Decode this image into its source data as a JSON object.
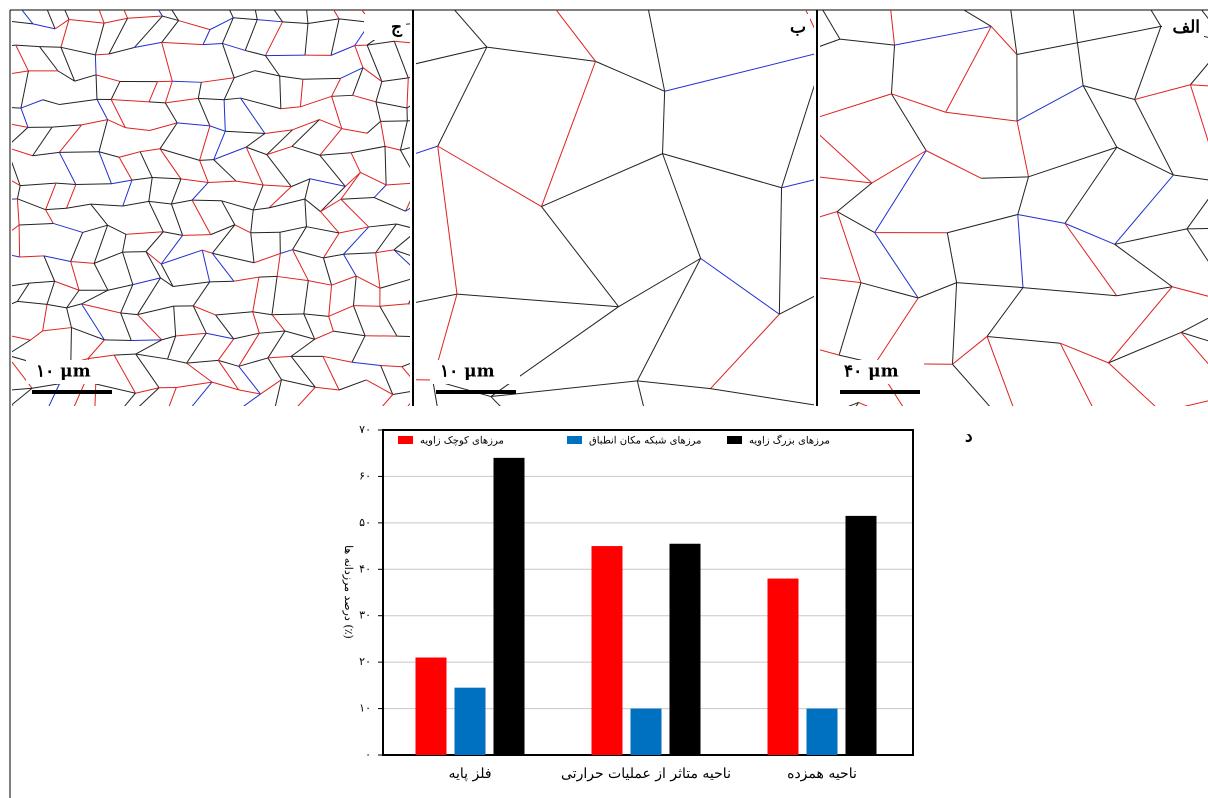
{
  "panels": [
    {
      "label": "ج",
      "scale": "۱۰ μm"
    },
    {
      "label": "ب",
      "scale": "۱۰ μm"
    },
    {
      "label": "الف",
      "scale": "۴۰ μm"
    }
  ],
  "chart_label": "د",
  "chart_data": {
    "type": "bar",
    "y_label": "درصد مرزدانه ها (٪)",
    "categories": [
      "فلز پایه",
      "ناحیه متاثر از عملیات حرارتی",
      "ناحیه همزده"
    ],
    "series": [
      {
        "name": "مرزهای کوچک زاویه",
        "color": "#ff0000",
        "values": [
          21,
          45,
          38
        ]
      },
      {
        "name": "مرزهای شبکه مکان انطباق",
        "color": "#0070c0",
        "values": [
          14.5,
          10,
          10
        ]
      },
      {
        "name": "مرزهای بزرگ زاویه",
        "color": "#000000",
        "values": [
          64,
          45.5,
          51.5
        ]
      }
    ],
    "ylim": [
      0,
      70
    ],
    "yticks": [
      {
        "value": 0,
        "label": "۰"
      },
      {
        "value": 10,
        "label": "۱۰"
      },
      {
        "value": 20,
        "label": "۲۰"
      },
      {
        "value": 30,
        "label": "۳۰"
      },
      {
        "value": 40,
        "label": "۴۰"
      },
      {
        "value": 50,
        "label": "۵۰"
      },
      {
        "value": 60,
        "label": "۶۰"
      },
      {
        "value": 70,
        "label": "۷۰"
      }
    ],
    "grid": true
  }
}
